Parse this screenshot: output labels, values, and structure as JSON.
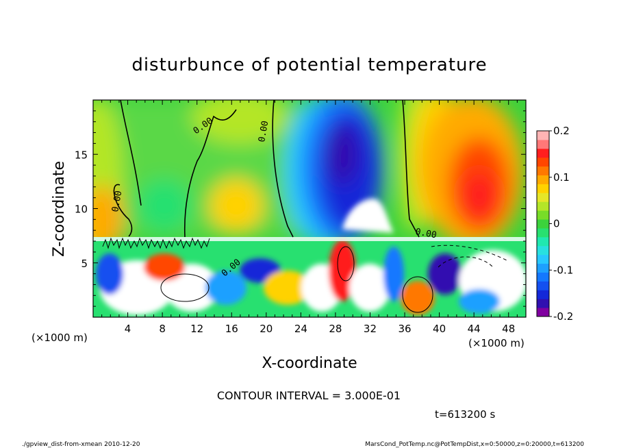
{
  "chart_data": {
    "type": "heatmap",
    "title": "disturbunce of potential temperature",
    "xlabel": "X-coordinate",
    "ylabel": "Z-coordinate",
    "x_unit": "(×1000 m)",
    "z_unit": "(×1000 m)",
    "x_range": [
      0,
      50
    ],
    "z_range": [
      0,
      20
    ],
    "x_ticks": [
      4,
      8,
      12,
      16,
      20,
      24,
      28,
      32,
      36,
      40,
      44,
      48
    ],
    "z_ticks": [
      5,
      10,
      15
    ],
    "colorbar": {
      "range": [
        -0.2,
        0.2
      ],
      "ticks": [
        {
          "value": 0.2,
          "label": "0.2"
        },
        {
          "value": 0.1,
          "label": "0.1"
        },
        {
          "value": 0,
          "label": "0"
        },
        {
          "value": -0.1,
          "label": "-0.1"
        },
        {
          "value": -0.2,
          "label": "-0.2"
        }
      ],
      "colors": [
        "#8000a0",
        "#3010b0",
        "#1428d8",
        "#1450f0",
        "#1478ff",
        "#1ea0ff",
        "#28c8ff",
        "#28e0e0",
        "#20e8b0",
        "#28e070",
        "#3cd23c",
        "#78dc28",
        "#b4e628",
        "#e6e628",
        "#ffd200",
        "#ffaa00",
        "#ff7800",
        "#ff4600",
        "#ff1e1e",
        "#ff7878",
        "#ffb4b4"
      ]
    },
    "contour_label": "0.00",
    "contour_interval_text": "CONTOUR INTERVAL = 3.000E-01",
    "time_text": "t=613200 s",
    "footer_left": "./gpview_dist-from-xmean  2010-12-20",
    "footer_right": "MarsCond_PotTemp.nc@PotTempDist,x=0:50000,z=0:20000,t=613200"
  }
}
